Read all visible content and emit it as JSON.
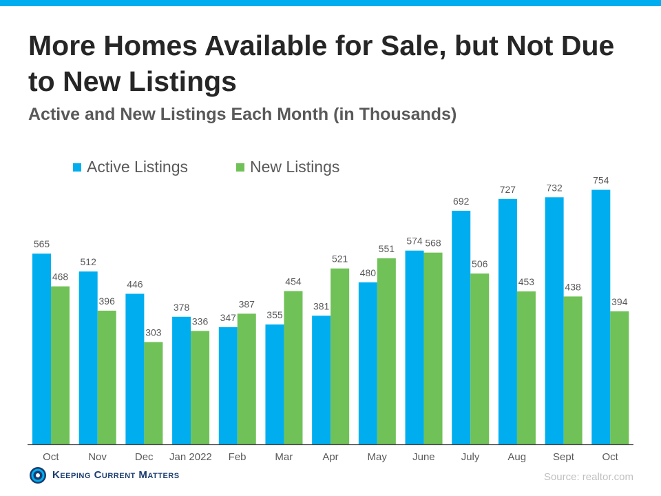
{
  "colors": {
    "accent_bar": "#00aeef",
    "active": "#00aeef",
    "new": "#70c157",
    "title": "#262626",
    "text": "#595959"
  },
  "header": {
    "title": "More Homes Available for Sale, but Not Due to New Listings",
    "subtitle": "Active and New Listings Each Month (in Thousands)"
  },
  "footer": {
    "logo_text": "Keeping Current Matters",
    "logo_icon": "kcm-logo-icon",
    "source": "Source: realtor.com"
  },
  "chart_data": {
    "type": "bar",
    "categories": [
      "Oct",
      "Nov",
      "Dec",
      "Jan 2022",
      "Feb",
      "Mar",
      "Apr",
      "May",
      "June",
      "July",
      "Aug",
      "Sept",
      "Oct"
    ],
    "series": [
      {
        "name": "Active Listings",
        "color": "#00aeef",
        "values": [
          565,
          512,
          446,
          378,
          347,
          355,
          381,
          480,
          574,
          692,
          727,
          732,
          754
        ]
      },
      {
        "name": "New Listings",
        "color": "#70c157",
        "values": [
          468,
          396,
          303,
          336,
          387,
          454,
          521,
          551,
          568,
          506,
          453,
          438,
          394
        ]
      }
    ],
    "ylim": [
      0,
      800
    ],
    "grid": false,
    "legend_position": "top-left",
    "data_labels": true
  }
}
